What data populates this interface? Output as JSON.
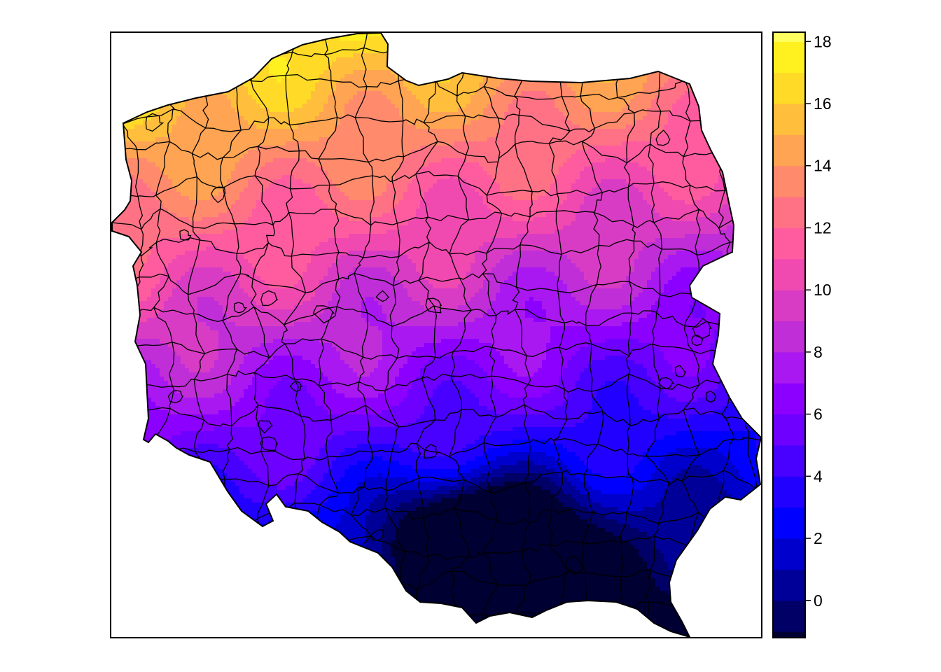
{
  "chart_data": {
    "type": "heatmap",
    "subtype": "choropleth",
    "title": "",
    "xlabel": "",
    "ylabel": "",
    "region_count": 380,
    "value_range": [
      -1.2,
      18.3
    ],
    "gradient_note": "values decrease from north-west (about 17-18) to south (about -1)",
    "legend": {
      "placement": "right",
      "breaks": [
        -1.0,
        0.0,
        1.0,
        2.0,
        3.0,
        4.0,
        5.0,
        6.0,
        7.0,
        8.0,
        9.0,
        10.0,
        11.0,
        12.0,
        13.0,
        14.0,
        15.0,
        16.0,
        17.0,
        18.0
      ],
      "colors": [
        "#000033",
        "#000066",
        "#000099",
        "#0000cc",
        "#0000ff",
        "#2200ff",
        "#4800ff",
        "#6d00ff",
        "#8c00ff",
        "#a918f0",
        "#c02ed8",
        "#d93cc4",
        "#f04ab0",
        "#ff5ca0",
        "#ff7285",
        "#ff8a6c",
        "#ffa452",
        "#ffbf3c",
        "#ffdb27",
        "#fff020",
        "#ffff60"
      ],
      "tick_values": [
        0,
        2,
        4,
        6,
        8,
        10,
        12,
        14,
        16,
        18
      ],
      "tick_labels": [
        "0",
        "2",
        "4",
        "6",
        "8",
        "10",
        "12",
        "14",
        "16",
        "18"
      ]
    },
    "grid": false
  }
}
